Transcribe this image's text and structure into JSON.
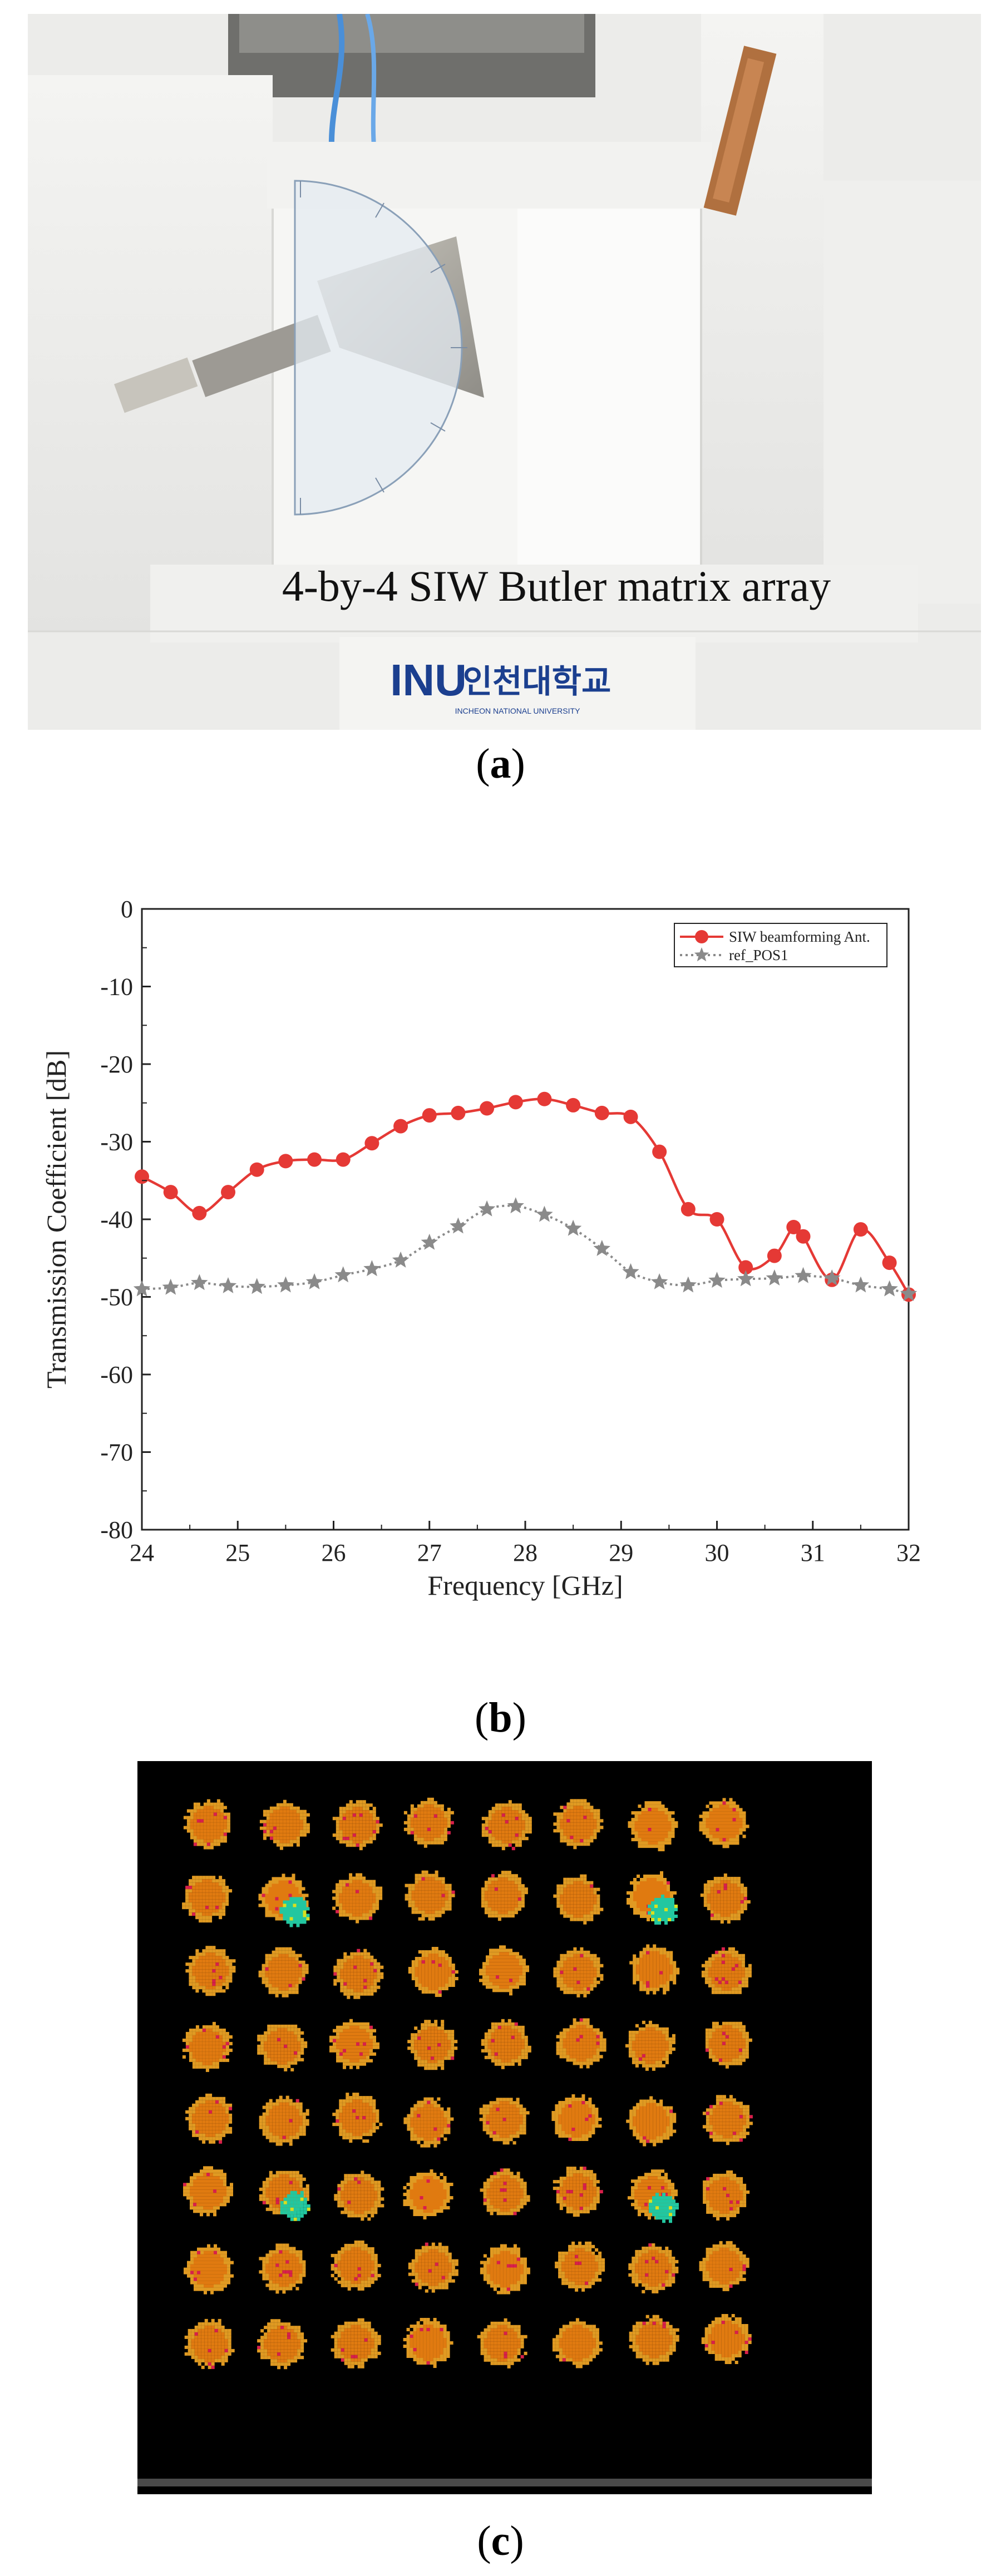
{
  "panels": {
    "a": {
      "caption_open": "(",
      "caption_letter": "a",
      "caption_close": ")",
      "photo_label": "4-by-4 SIW Butler matrix array",
      "sign_korean": "인천대학교",
      "sign_english": "INCHEON NATIONAL UNIVERSITY"
    },
    "b": {
      "caption_open": "(",
      "caption_letter": "b",
      "caption_close": ")"
    },
    "c": {
      "caption_open": "(",
      "caption_letter": "c",
      "caption_close": ")"
    }
  },
  "chart_data": {
    "type": "line",
    "title": "",
    "xlabel": "Frequency [GHz]",
    "ylabel": "Transmission Coefficient [dB]",
    "xlim": [
      24,
      32
    ],
    "ylim": [
      -80,
      0
    ],
    "xticks": [
      24,
      25,
      26,
      27,
      28,
      29,
      30,
      31,
      32
    ],
    "yticks": [
      0,
      -10,
      -20,
      -30,
      -40,
      -50,
      -60,
      -70,
      -80
    ],
    "legend_position": "top-right",
    "series": [
      {
        "name": "SIW beamforming Ant.",
        "color": "#e53935",
        "marker": "circle",
        "line_style": "solid",
        "x": [
          24.0,
          24.3,
          24.6,
          24.9,
          25.2,
          25.5,
          25.8,
          26.1,
          26.4,
          26.7,
          27.0,
          27.3,
          27.6,
          27.9,
          28.2,
          28.5,
          28.8,
          29.1,
          29.4,
          29.7,
          30.0,
          30.3,
          30.6,
          30.8,
          30.9,
          31.2,
          31.5,
          31.8,
          32.0
        ],
        "y": [
          -34.5,
          -36.5,
          -39.2,
          -36.5,
          -33.6,
          -32.5,
          -32.3,
          -32.3,
          -30.2,
          -28.0,
          -26.6,
          -26.3,
          -25.7,
          -24.9,
          -24.5,
          -25.3,
          -26.3,
          -26.8,
          -31.3,
          -38.7,
          -40.0,
          -46.2,
          -44.7,
          -41.0,
          -42.2,
          -47.8,
          -41.3,
          -45.6,
          -49.7
        ]
      },
      {
        "name": "ref_POS1",
        "color": "#8a8a8a",
        "marker": "star",
        "line_style": "dotted",
        "x": [
          24.0,
          24.3,
          24.6,
          24.9,
          25.2,
          25.5,
          25.8,
          26.1,
          26.4,
          26.7,
          27.0,
          27.3,
          27.6,
          27.9,
          28.2,
          28.5,
          28.8,
          29.1,
          29.4,
          29.7,
          30.0,
          30.3,
          30.6,
          30.9,
          31.2,
          31.5,
          31.8,
          32.0
        ],
        "y": [
          -49.0,
          -48.8,
          -48.2,
          -48.6,
          -48.7,
          -48.5,
          -48.1,
          -47.2,
          -46.4,
          -45.3,
          -43.0,
          -40.9,
          -38.7,
          -38.3,
          -39.4,
          -41.2,
          -43.8,
          -46.8,
          -48.1,
          -48.5,
          -47.9,
          -47.7,
          -47.6,
          -47.3,
          -47.6,
          -48.5,
          -49.0,
          -49.6
        ]
      }
    ]
  },
  "heatmap": {
    "rows": 8,
    "cols": 8,
    "background_color": "#000000",
    "blob_color": "#e07a10",
    "blob_edge_color": "#e09a22",
    "speck_color": "#d8204a",
    "hot_color": "#22c7a0",
    "hot_cells": [
      [
        1,
        1
      ],
      [
        1,
        6
      ],
      [
        5,
        1
      ],
      [
        5,
        6
      ]
    ]
  }
}
